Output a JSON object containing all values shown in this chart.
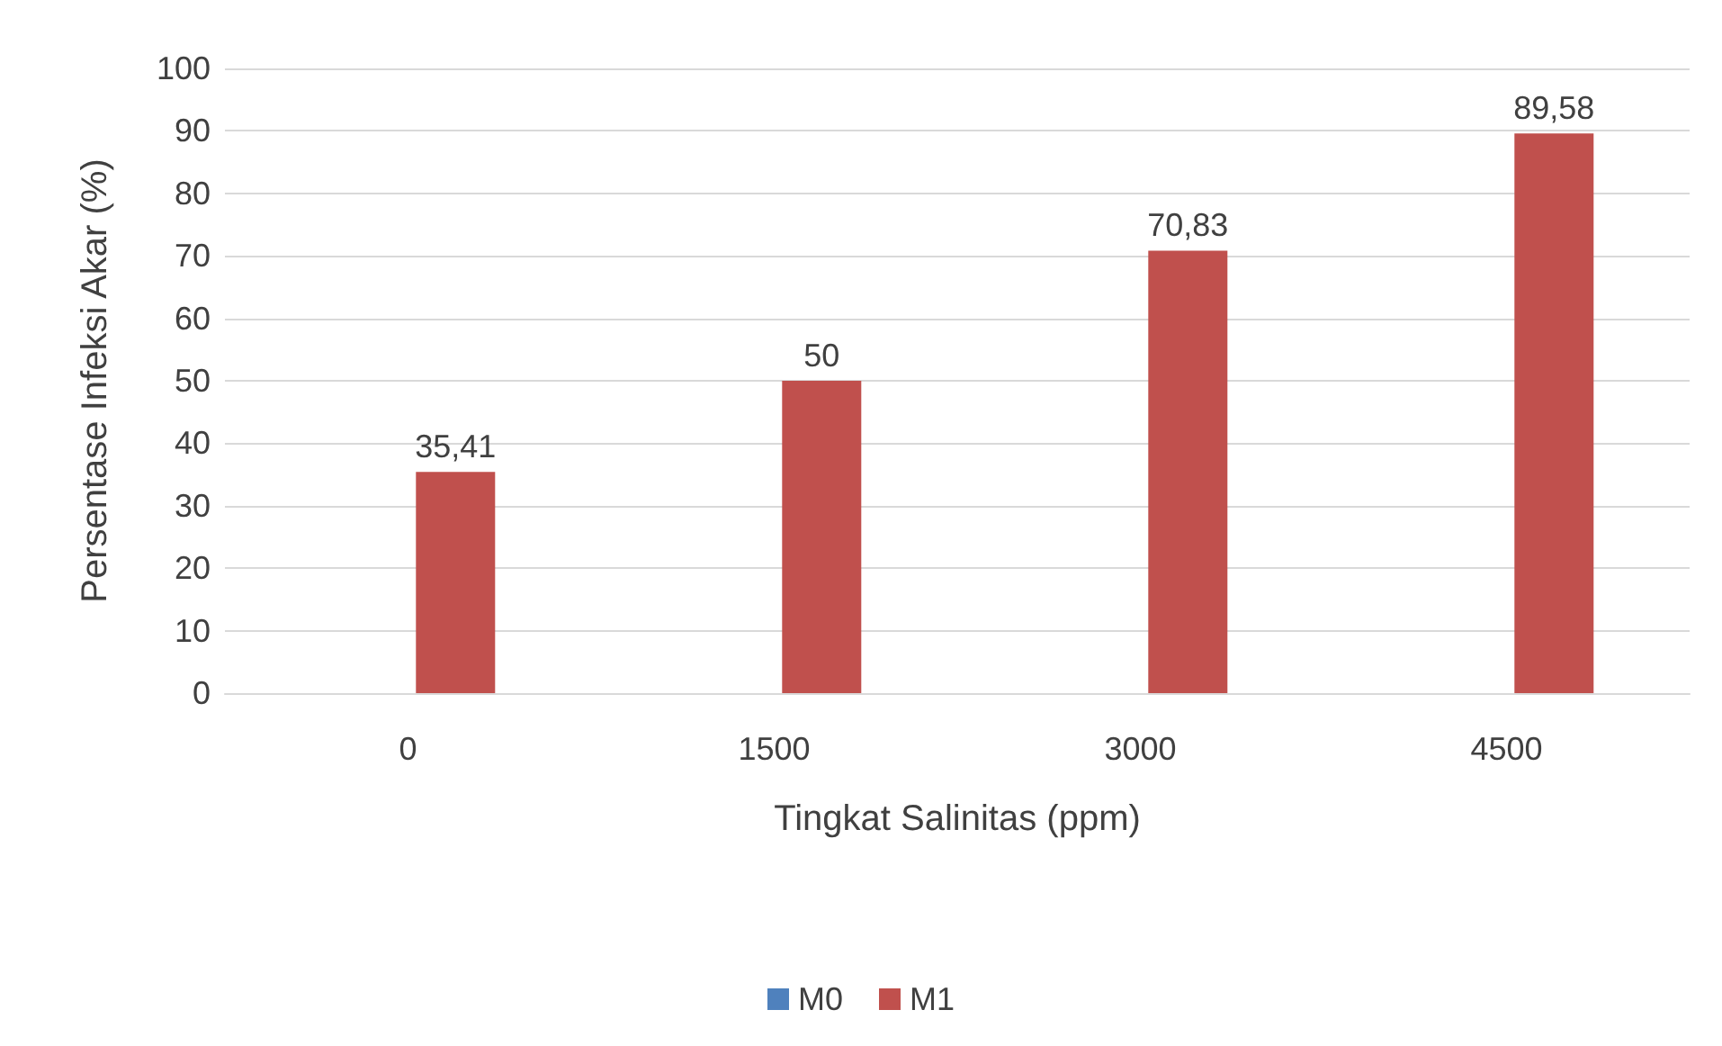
{
  "chart_data": {
    "type": "bar",
    "xlabel": "Tingkat Salinitas (ppm)",
    "ylabel": "Persentase Infeksi Akar (%)",
    "categories": [
      "0",
      "1500",
      "3000",
      "4500"
    ],
    "series": [
      {
        "name": "M0",
        "color": "#4f81bd",
        "values": [
          null,
          null,
          null,
          null
        ]
      },
      {
        "name": "M1",
        "color": "#c0504d",
        "values": [
          35.41,
          50,
          70.83,
          89.58
        ],
        "value_labels": [
          "35,41",
          "50",
          "70,83",
          "89,58"
        ]
      }
    ],
    "ylim": [
      0,
      100
    ],
    "yticks": [
      0,
      10,
      20,
      30,
      40,
      50,
      60,
      70,
      80,
      90,
      100
    ],
    "grid": "y",
    "legend": "bottom"
  }
}
